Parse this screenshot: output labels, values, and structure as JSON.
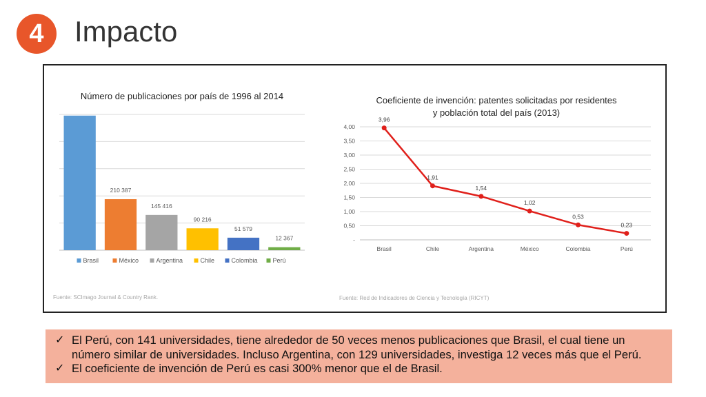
{
  "slide": {
    "number": "4",
    "title": "Impacto",
    "check_icon": "check-icon",
    "bullets": [
      "El Perú, con 141 universidades, tiene alrededor de 50 veces menos publicaciones que Brasil, el cual tiene un número similar de universidades. Incluso Argentina, con 129 universidades, investiga 12 veces más que el Perú.",
      "El coeficiente de invención de Perú es casi 300% menor que el de Brasil."
    ],
    "accent_color": "#E8562A",
    "note_background": "#F4B19C"
  },
  "chart_data": [
    {
      "type": "bar",
      "title": "Número de publicaciones por país de 1996 al 2014",
      "categories": [
        "Brasil",
        "México",
        "Argentina",
        "Chile",
        "Colombia",
        "Perú"
      ],
      "values": [
        555000,
        210387,
        145416,
        90216,
        51579,
        12367
      ],
      "data_labels": [
        "",
        "210 387",
        "145 416",
        "90 216",
        "51 579",
        "12 367"
      ],
      "colors": [
        "#5B9BD5",
        "#ED7D31",
        "#A5A5A5",
        "#FFC000",
        "#4472C4",
        "#70AD47"
      ],
      "ylim": [
        0,
        560000
      ],
      "grid": true,
      "legend": "bottom",
      "source": "Fuente: SCImago Journal & Country Rank."
    },
    {
      "type": "line",
      "title_lines": [
        "Coeficiente de invención: patentes solicitadas por residentes",
        "y población total del país (2013)"
      ],
      "categories": [
        "Brasil",
        "Chile",
        "Argentina",
        "México",
        "Colombia",
        "Perú"
      ],
      "values": [
        3.96,
        1.91,
        1.54,
        1.02,
        0.53,
        0.23
      ],
      "data_labels": [
        "3,96",
        "1,91",
        "1,54",
        "1,02",
        "0,53",
        "0,23"
      ],
      "yticks": [
        "-",
        "0,50",
        "1,00",
        "1,50",
        "2,00",
        "2,50",
        "3,00",
        "3,50",
        "4,00"
      ],
      "ylim": [
        0,
        4
      ],
      "color": "#E0201B",
      "grid": true,
      "source": "Fuente: Red de Indicadores de Ciencia y Tecnología (RICYT)"
    }
  ]
}
